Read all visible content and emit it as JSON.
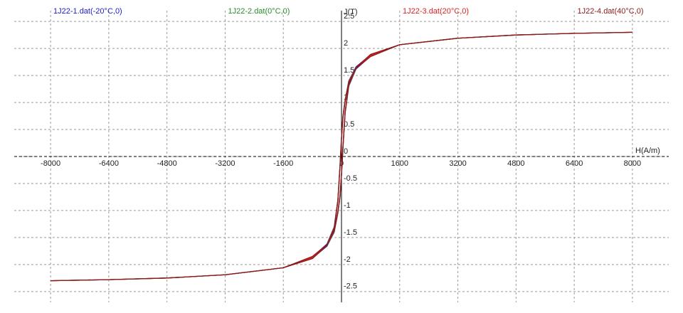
{
  "chart_data": {
    "type": "line",
    "x_label": "H(A/m)",
    "y_label": "J(T)",
    "x": [
      -8000,
      -6400,
      -4800,
      -3200,
      -1600,
      -800,
      -400,
      -200,
      -100,
      -40,
      0,
      40,
      100,
      200,
      400,
      800,
      1600,
      3200,
      4800,
      6400,
      8000,
      6400,
      4800,
      3200,
      1600,
      800,
      400,
      200,
      100,
      40,
      0,
      -40,
      -100,
      -200,
      -400,
      -800,
      -1600,
      -3200,
      -4800,
      -6400,
      -8000
    ],
    "series": [
      {
        "name": "1J22-1.dat(-20°C,0)",
        "color": "#1c1cd0",
        "values": [
          -2.3,
          -2.28,
          -2.25,
          -2.19,
          -2.06,
          -1.88,
          -1.66,
          -1.4,
          -1.05,
          -0.75,
          -0.35,
          0.15,
          0.8,
          1.3,
          1.62,
          1.86,
          2.07,
          2.19,
          2.25,
          2.28,
          2.3,
          2.28,
          2.25,
          2.19,
          2.07,
          1.88,
          1.66,
          1.4,
          1.05,
          0.75,
          0.35,
          -0.15,
          -0.8,
          -1.3,
          -1.62,
          -1.86,
          -2.06,
          -2.19,
          -2.25,
          -2.28,
          -2.3
        ]
      },
      {
        "name": "1J22-2.dat(0°C,0)",
        "color": "#2a8a2a",
        "values": [
          -2.3,
          -2.28,
          -2.25,
          -2.19,
          -2.06,
          -1.87,
          -1.65,
          -1.39,
          -1.04,
          -0.74,
          -0.34,
          0.16,
          0.81,
          1.31,
          1.63,
          1.87,
          2.07,
          2.19,
          2.25,
          2.28,
          2.3,
          2.28,
          2.25,
          2.19,
          2.07,
          1.87,
          1.65,
          1.39,
          1.04,
          0.74,
          0.34,
          -0.16,
          -0.81,
          -1.31,
          -1.63,
          -1.87,
          -2.06,
          -2.19,
          -2.25,
          -2.28,
          -2.3
        ]
      },
      {
        "name": "1J22-3.dat(20°C,0)",
        "color": "#e02020",
        "values": [
          -2.3,
          -2.28,
          -2.25,
          -2.19,
          -2.06,
          -1.86,
          -1.64,
          -1.38,
          -1.03,
          -0.73,
          -0.33,
          0.17,
          0.82,
          1.32,
          1.64,
          1.88,
          2.07,
          2.19,
          2.25,
          2.28,
          2.3,
          2.28,
          2.25,
          2.19,
          2.07,
          1.86,
          1.64,
          1.38,
          1.03,
          0.73,
          0.33,
          -0.17,
          -0.82,
          -1.32,
          -1.64,
          -1.88,
          -2.06,
          -2.19,
          -2.25,
          -2.28,
          -2.3
        ]
      },
      {
        "name": "1J22-4.dat(40°C,0)",
        "color": "#8b1a1a",
        "values": [
          -2.3,
          -2.28,
          -2.25,
          -2.19,
          -2.06,
          -1.85,
          -1.63,
          -1.37,
          -1.02,
          -0.72,
          -0.32,
          0.18,
          0.83,
          1.33,
          1.65,
          1.89,
          2.07,
          2.19,
          2.25,
          2.28,
          2.3,
          2.28,
          2.25,
          2.19,
          2.07,
          1.85,
          1.63,
          1.37,
          1.02,
          0.72,
          0.32,
          -0.18,
          -0.83,
          -1.33,
          -1.65,
          -1.89,
          -2.06,
          -2.19,
          -2.25,
          -2.28,
          -2.3
        ]
      }
    ],
    "xlim": [
      -9000,
      9000
    ],
    "ylim": [
      -2.7,
      2.7
    ],
    "xticks": [
      -8000,
      -6400,
      -4800,
      -3200,
      -1600,
      0,
      1600,
      3200,
      4800,
      6400,
      8000
    ],
    "yticks": [
      -2.5,
      -2,
      -1.5,
      -1,
      -0.5,
      0,
      0.5,
      1,
      1.5,
      2,
      2.5
    ],
    "grid": true
  }
}
